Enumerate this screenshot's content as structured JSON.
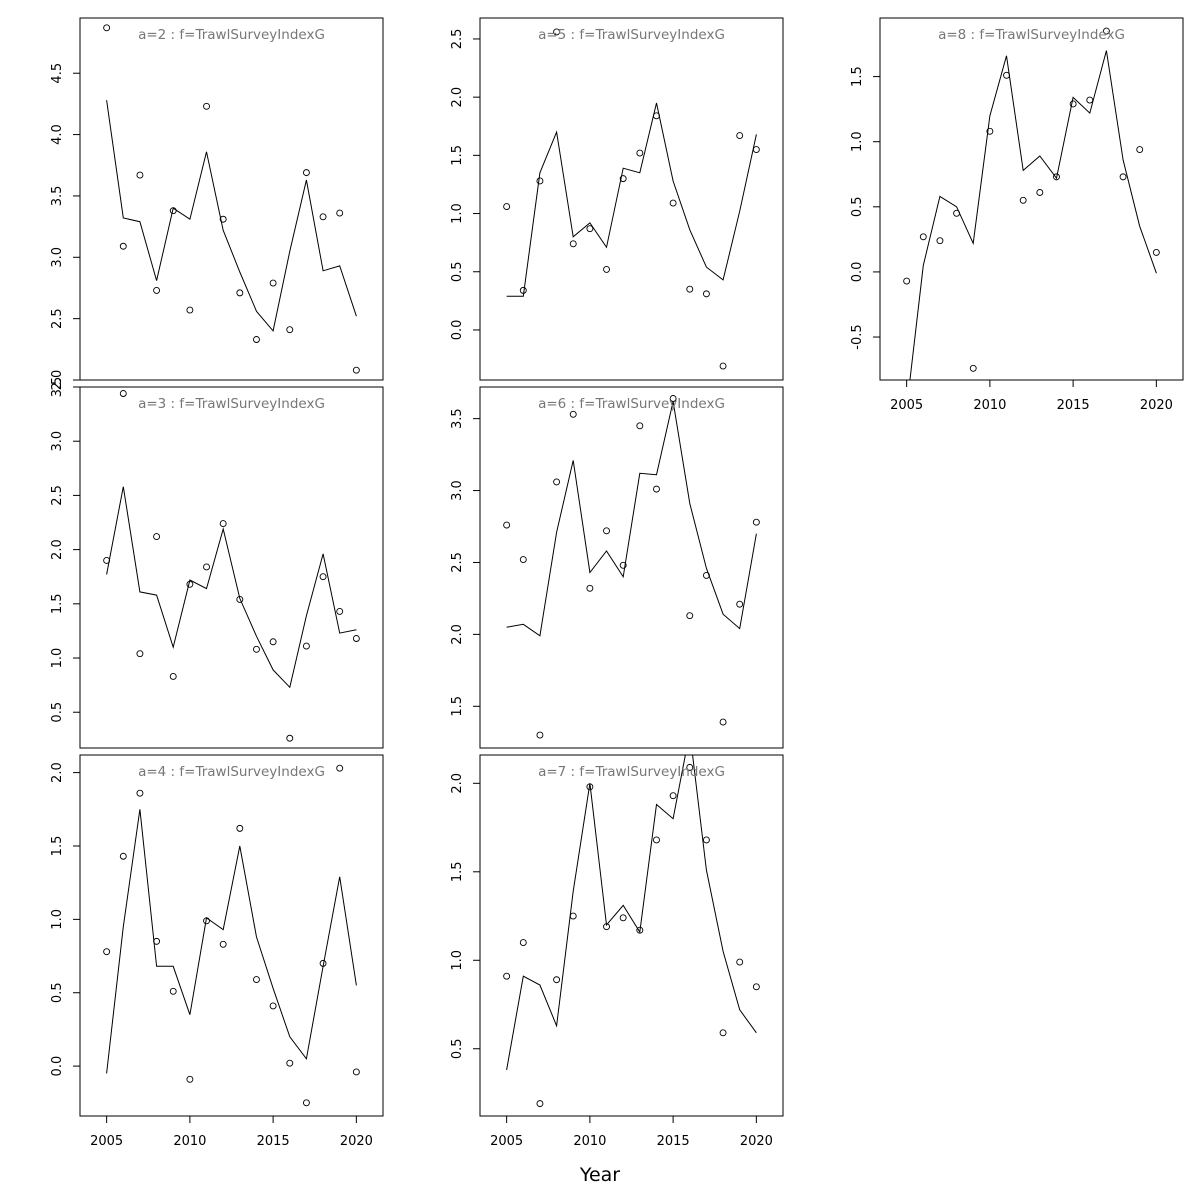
{
  "figure": {
    "xlabel": "Year"
  },
  "chart_data": [
    {
      "type": "line",
      "title": "a=2  :  f=TrawlSurveyIndexG",
      "x": [
        2005,
        2006,
        2007,
        2008,
        2009,
        2010,
        2011,
        2012,
        2013,
        2014,
        2015,
        2016,
        2017,
        2018,
        2019,
        2020
      ],
      "series": [
        {
          "style": "line",
          "values": [
            4.28,
            3.32,
            3.29,
            2.81,
            3.4,
            3.31,
            3.86,
            3.22,
            2.88,
            2.56,
            2.4,
            3.05,
            3.63,
            2.89,
            2.93,
            2.52
          ]
        },
        {
          "style": "points",
          "values": [
            4.87,
            3.09,
            3.67,
            2.73,
            3.38,
            2.57,
            4.23,
            3.31,
            2.71,
            2.33,
            2.79,
            2.41,
            3.69,
            3.33,
            3.36,
            2.08
          ]
        }
      ],
      "xlim": [
        2003.4,
        2021.6
      ],
      "ylim": [
        2.0,
        4.95
      ],
      "yticks": [
        2.0,
        2.5,
        3.0,
        3.5,
        4.0,
        4.5
      ],
      "ytick_labels": [
        "2.0",
        "2.5",
        "3.0",
        "3.5",
        "4.0",
        "4.5"
      ],
      "xticks": [],
      "xtick_labels": []
    },
    {
      "type": "line",
      "title": "a=3  :  f=TrawlSurveyIndexG",
      "x": [
        2005,
        2006,
        2007,
        2008,
        2009,
        2010,
        2011,
        2012,
        2013,
        2014,
        2015,
        2016,
        2017,
        2018,
        2019,
        2020
      ],
      "series": [
        {
          "style": "line",
          "values": [
            1.77,
            2.58,
            1.61,
            1.58,
            1.1,
            1.72,
            1.64,
            2.19,
            1.55,
            1.2,
            0.89,
            0.73,
            1.39,
            1.96,
            1.23,
            1.26
          ]
        },
        {
          "style": "points",
          "values": [
            1.9,
            3.44,
            1.04,
            2.12,
            0.83,
            1.68,
            1.84,
            2.24,
            1.54,
            1.08,
            1.15,
            0.26,
            1.11,
            1.75,
            1.43,
            1.18
          ]
        }
      ],
      "xlim": [
        2003.4,
        2021.6
      ],
      "ylim": [
        0.17,
        3.5
      ],
      "yticks": [
        0.5,
        1.0,
        1.5,
        2.0,
        2.5,
        3.0,
        3.5
      ],
      "ytick_labels": [
        "0.5",
        "1.0",
        "1.5",
        "2.0",
        "2.5",
        "3.0",
        "3.5"
      ],
      "xticks": [],
      "xtick_labels": []
    },
    {
      "type": "line",
      "title": "a=4  :  f=TrawlSurveyIndexG",
      "x": [
        2005,
        2006,
        2007,
        2008,
        2009,
        2010,
        2011,
        2012,
        2013,
        2014,
        2015,
        2016,
        2017,
        2018,
        2019,
        2020
      ],
      "series": [
        {
          "style": "line",
          "values": [
            -0.05,
            0.95,
            1.75,
            0.68,
            0.68,
            0.35,
            1.01,
            0.93,
            1.5,
            0.88,
            0.53,
            0.2,
            0.05,
            0.68,
            1.29,
            0.55
          ]
        },
        {
          "style": "points",
          "values": [
            0.78,
            1.43,
            1.86,
            0.85,
            0.51,
            -0.09,
            0.99,
            0.83,
            1.62,
            0.59,
            0.41,
            0.02,
            -0.25,
            0.7,
            2.03,
            -0.04
          ]
        }
      ],
      "xlim": [
        2003.4,
        2021.6
      ],
      "ylim": [
        -0.34,
        2.12
      ],
      "yticks": [
        0.0,
        0.5,
        1.0,
        1.5,
        2.0
      ],
      "ytick_labels": [
        "0.0",
        "0.5",
        "1.0",
        "1.5",
        "2.0"
      ],
      "xticks": [
        2005,
        2010,
        2015,
        2020
      ],
      "xtick_labels": [
        "2005",
        "2010",
        "2015",
        "2020"
      ]
    },
    {
      "type": "line",
      "title": "a=5  :  f=TrawlSurveyIndexG",
      "x": [
        2005,
        2006,
        2007,
        2008,
        2009,
        2010,
        2011,
        2012,
        2013,
        2014,
        2015,
        2016,
        2017,
        2018,
        2019,
        2020
      ],
      "series": [
        {
          "style": "line",
          "values": [
            0.29,
            0.29,
            1.35,
            1.7,
            0.8,
            0.92,
            0.71,
            1.39,
            1.35,
            1.95,
            1.28,
            0.86,
            0.54,
            0.43,
            1.02,
            1.68
          ]
        },
        {
          "style": "points",
          "values": [
            1.06,
            0.34,
            1.28,
            2.56,
            0.74,
            0.87,
            0.52,
            1.3,
            1.52,
            1.84,
            1.09,
            0.35,
            0.31,
            -0.31,
            1.67,
            1.55
          ]
        }
      ],
      "xlim": [
        2003.4,
        2021.6
      ],
      "ylim": [
        -0.43,
        2.68
      ],
      "yticks": [
        0.0,
        0.5,
        1.0,
        1.5,
        2.0,
        2.5
      ],
      "ytick_labels": [
        "0.0",
        "0.5",
        "1.0",
        "1.5",
        "2.0",
        "2.5"
      ],
      "xticks": [],
      "xtick_labels": []
    },
    {
      "type": "line",
      "title": "a=6  :  f=TrawlSurveyIndexG",
      "x": [
        2005,
        2006,
        2007,
        2008,
        2009,
        2010,
        2011,
        2012,
        2013,
        2014,
        2015,
        2016,
        2017,
        2018,
        2019,
        2020
      ],
      "series": [
        {
          "style": "line",
          "values": [
            2.05,
            2.07,
            1.99,
            2.71,
            3.21,
            2.43,
            2.58,
            2.4,
            3.12,
            3.11,
            3.62,
            2.91,
            2.46,
            2.14,
            2.04,
            2.7
          ]
        },
        {
          "style": "points",
          "values": [
            2.76,
            2.52,
            1.3,
            3.06,
            3.53,
            2.32,
            2.72,
            2.48,
            3.45,
            3.01,
            3.64,
            2.13,
            2.41,
            1.39,
            2.21,
            2.78
          ]
        }
      ],
      "xlim": [
        2003.4,
        2021.6
      ],
      "ylim": [
        1.21,
        3.72
      ],
      "yticks": [
        1.5,
        2.0,
        2.5,
        3.0,
        3.5
      ],
      "ytick_labels": [
        "1.5",
        "2.0",
        "2.5",
        "3.0",
        "3.5"
      ],
      "xticks": [],
      "xtick_labels": []
    },
    {
      "type": "line",
      "title": "a=7  :  f=TrawlSurveyIndexG",
      "x": [
        2005,
        2006,
        2007,
        2008,
        2009,
        2010,
        2011,
        2012,
        2013,
        2014,
        2015,
        2016,
        2017,
        2018,
        2019,
        2020
      ],
      "series": [
        {
          "style": "line",
          "values": [
            0.38,
            0.91,
            0.86,
            0.63,
            1.39,
            2.0,
            1.2,
            1.31,
            1.16,
            1.88,
            1.8,
            2.29,
            1.51,
            1.05,
            0.72,
            0.59
          ]
        },
        {
          "style": "points",
          "values": [
            0.91,
            1.1,
            0.19,
            0.89,
            1.25,
            1.98,
            1.19,
            1.24,
            1.17,
            1.68,
            1.93,
            2.09,
            1.68,
            0.59,
            0.99,
            0.85
          ]
        }
      ],
      "xlim": [
        2003.4,
        2021.6
      ],
      "ylim": [
        0.12,
        2.16
      ],
      "yticks": [
        0.5,
        1.0,
        1.5,
        2.0
      ],
      "ytick_labels": [
        "0.5",
        "1.0",
        "1.5",
        "2.0"
      ],
      "xticks": [
        2005,
        2010,
        2015,
        2020
      ],
      "xtick_labels": [
        "2005",
        "2010",
        "2015",
        "2020"
      ]
    },
    {
      "type": "line",
      "title": "a=8  :  f=TrawlSurveyIndexG",
      "x": [
        2005,
        2006,
        2007,
        2008,
        2009,
        2010,
        2011,
        2012,
        2013,
        2014,
        2015,
        2016,
        2017,
        2018,
        2019,
        2020
      ],
      "series": [
        {
          "style": "line",
          "values": [
            -1.05,
            0.05,
            0.58,
            0.5,
            0.22,
            1.2,
            1.66,
            0.78,
            0.89,
            0.72,
            1.34,
            1.22,
            1.7,
            0.86,
            0.35,
            -0.01
          ]
        },
        {
          "style": "points",
          "values": [
            -0.07,
            0.27,
            0.24,
            0.45,
            -0.74,
            1.08,
            1.51,
            0.55,
            0.61,
            0.73,
            1.29,
            1.32,
            1.85,
            0.73,
            0.94,
            0.15
          ]
        }
      ],
      "xlim": [
        2003.4,
        2021.6
      ],
      "ylim": [
        -0.83,
        1.95
      ],
      "yticks": [
        -0.5,
        0.0,
        0.5,
        1.0,
        1.5
      ],
      "ytick_labels": [
        "-0.5",
        "0.0",
        "0.5",
        "1.0",
        "1.5"
      ],
      "xticks": [
        2005,
        2010,
        2015,
        2020
      ],
      "xtick_labels": [
        "2005",
        "2010",
        "2015",
        "2020"
      ]
    }
  ]
}
